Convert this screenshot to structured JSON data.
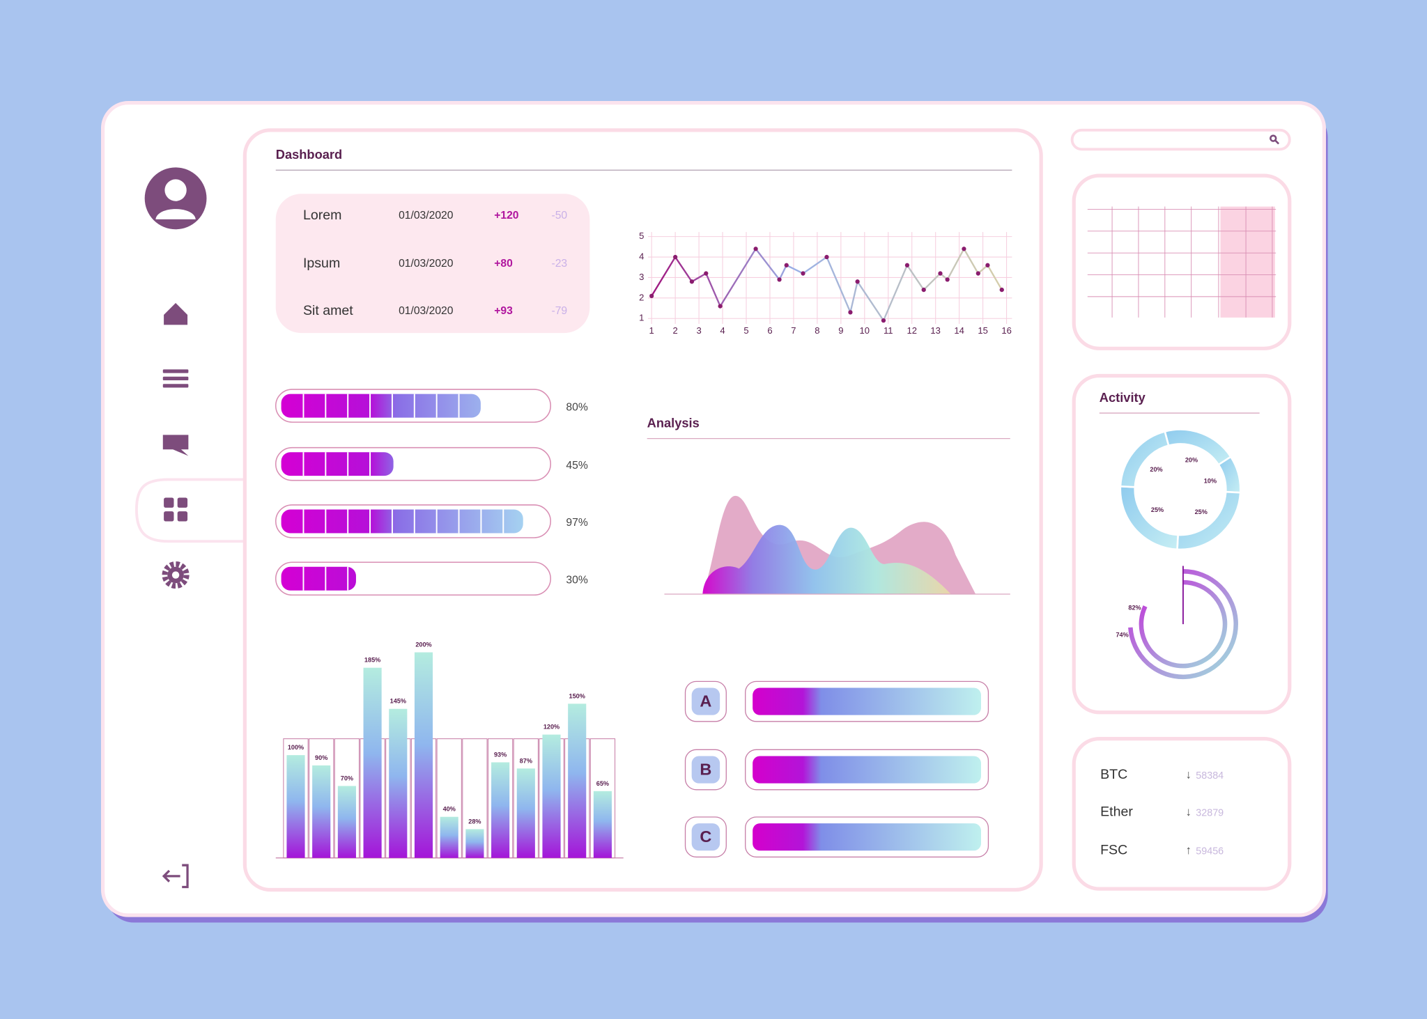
{
  "dashboard": {
    "title": "Dashboard",
    "table": {
      "rows": [
        [
          "Lorem",
          "01/03/2020",
          "+120",
          "-50"
        ],
        [
          "Ipsum",
          "01/03/2020",
          "+80",
          "-23"
        ],
        [
          "Sit amet",
          "01/03/2020",
          "+93",
          "-79"
        ]
      ]
    }
  },
  "progress": {
    "values": [
      80,
      45,
      97,
      30
    ],
    "value_labels": [
      "80%",
      "45%",
      "97%",
      "30%"
    ]
  },
  "line_chart": {
    "type": "line",
    "x": [
      1,
      2,
      2.7,
      3.3,
      3.9,
      5.4,
      6.4,
      6.7,
      7.4,
      8.4,
      9.4,
      9.7,
      10.8,
      11.8,
      12.5,
      13.2,
      13.5,
      14.2,
      14.8,
      15.2,
      15.8
    ],
    "values": [
      2.1,
      4,
      2.8,
      3.2,
      1.6,
      4.4,
      2.9,
      3.6,
      3.2,
      4,
      1.3,
      2.8,
      0.9,
      3.6,
      2.4,
      3.2,
      2.9,
      4.4,
      3.2,
      3.6,
      2.4
    ],
    "xlim": [
      1,
      16
    ],
    "ylim": [
      1,
      5
    ],
    "xticks": [
      1,
      2,
      3,
      4,
      5,
      6,
      7,
      8,
      9,
      10,
      11,
      12,
      13,
      14,
      15,
      16
    ],
    "yticks": [
      1,
      2,
      3,
      4,
      5
    ],
    "grid": true
  },
  "analysis": {
    "title": "Analysis"
  },
  "bar_chart": {
    "type": "bar",
    "values": [
      100,
      90,
      70,
      185,
      145,
      200,
      40,
      28,
      93,
      87,
      120,
      150,
      65
    ],
    "value_labels": [
      "100%",
      "90%",
      "70%",
      "185%",
      "145%",
      "200%",
      "40%",
      "28%",
      "93%",
      "87%",
      "120%",
      "150%",
      "65%"
    ],
    "ylim": [
      0,
      200
    ]
  },
  "buttons": [
    "A",
    "B",
    "C"
  ],
  "activity": {
    "title": "Activity",
    "donut": {
      "values": [
        20,
        10,
        25,
        25,
        20
      ],
      "value_labels": [
        "20%",
        "10%",
        "25%",
        "25%",
        "20%"
      ]
    },
    "radial": {
      "values": [
        82,
        74
      ],
      "value_labels": [
        "82%",
        "74%"
      ]
    }
  },
  "crypto": {
    "rows": [
      {
        "name": "BTC",
        "trend": "↓",
        "value": 58384
      },
      {
        "name": "Ether",
        "trend": "↓",
        "value": 32879
      },
      {
        "name": "FSC",
        "trend": "↑",
        "value": 59456
      }
    ]
  }
}
